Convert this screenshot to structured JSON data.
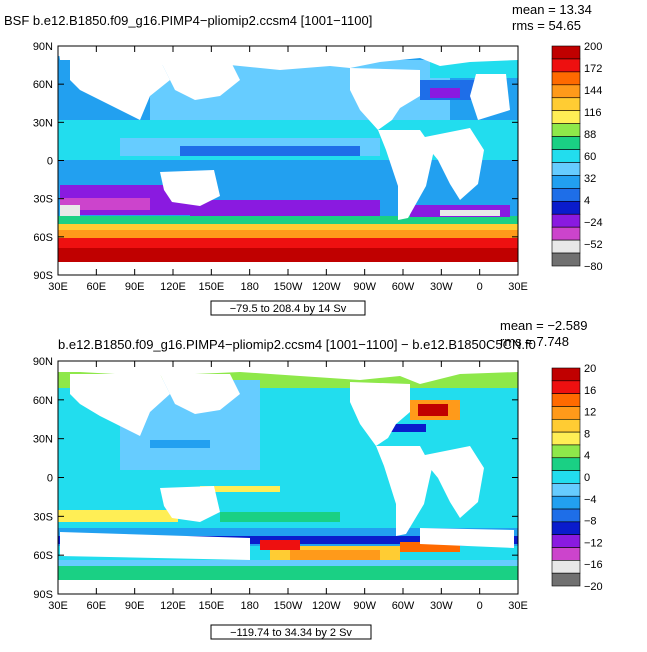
{
  "top": {
    "title": "BSF b.e12.B1850.f09_g16.PIMP4−pliomip2.ccsm4 [1001−1100]",
    "stat_mean": "mean = 13.34",
    "stat_rms": "rms = 54.65",
    "range_label": "−79.5 to 208.4 by 14 Sv",
    "colorbar_labels": [
      "200",
      "172",
      "144",
      "116",
      "88",
      "60",
      "32",
      "4",
      "−24",
      "−52",
      "−80"
    ]
  },
  "bottom": {
    "title": "b.e12.B1850.f09_g16.PIMP4−pliomip2.ccsm4 [1001−1100] − b.e12.B1850C5CN.f0",
    "stat_mean": "mean = −2.589",
    "stat_rms": "rms = 7.748",
    "range_label": "−119.74 to 34.34 by 2 Sv",
    "colorbar_labels": [
      "20",
      "16",
      "12",
      "8",
      "4",
      "0",
      "−4",
      "−8",
      "−12",
      "−16",
      "−20"
    ]
  },
  "lat_labels": [
    "90N",
    "60N",
    "30N",
    "0",
    "30S",
    "60S",
    "90S"
  ],
  "lon_labels": [
    "30E",
    "60E",
    "90E",
    "120E",
    "150E",
    "180",
    "150W",
    "120W",
    "90W",
    "60W",
    "30W",
    "0",
    "30E"
  ],
  "colors": {
    "top_scale": [
      "#c00000",
      "#ee1010",
      "#ff6a00",
      "#ff9a1a",
      "#ffcc33",
      "#ffee55",
      "#8ee84a",
      "#1ad084",
      "#22ddee",
      "#66ccff",
      "#22a0f0",
      "#1e6ee8",
      "#0a1ccc",
      "#8a1ae0",
      "#cc44cc",
      "#e8e8e8",
      "#707070"
    ],
    "bottom_scale": [
      "#c00000",
      "#ee1010",
      "#ff6a00",
      "#ff9a1a",
      "#ffcc33",
      "#ffee55",
      "#8ee84a",
      "#1ad084",
      "#22ddee",
      "#66ccff",
      "#22a0f0",
      "#1e6ee8",
      "#0a1ccc",
      "#8a1ae0",
      "#cc44cc",
      "#e8e8e8",
      "#707070"
    ]
  }
}
